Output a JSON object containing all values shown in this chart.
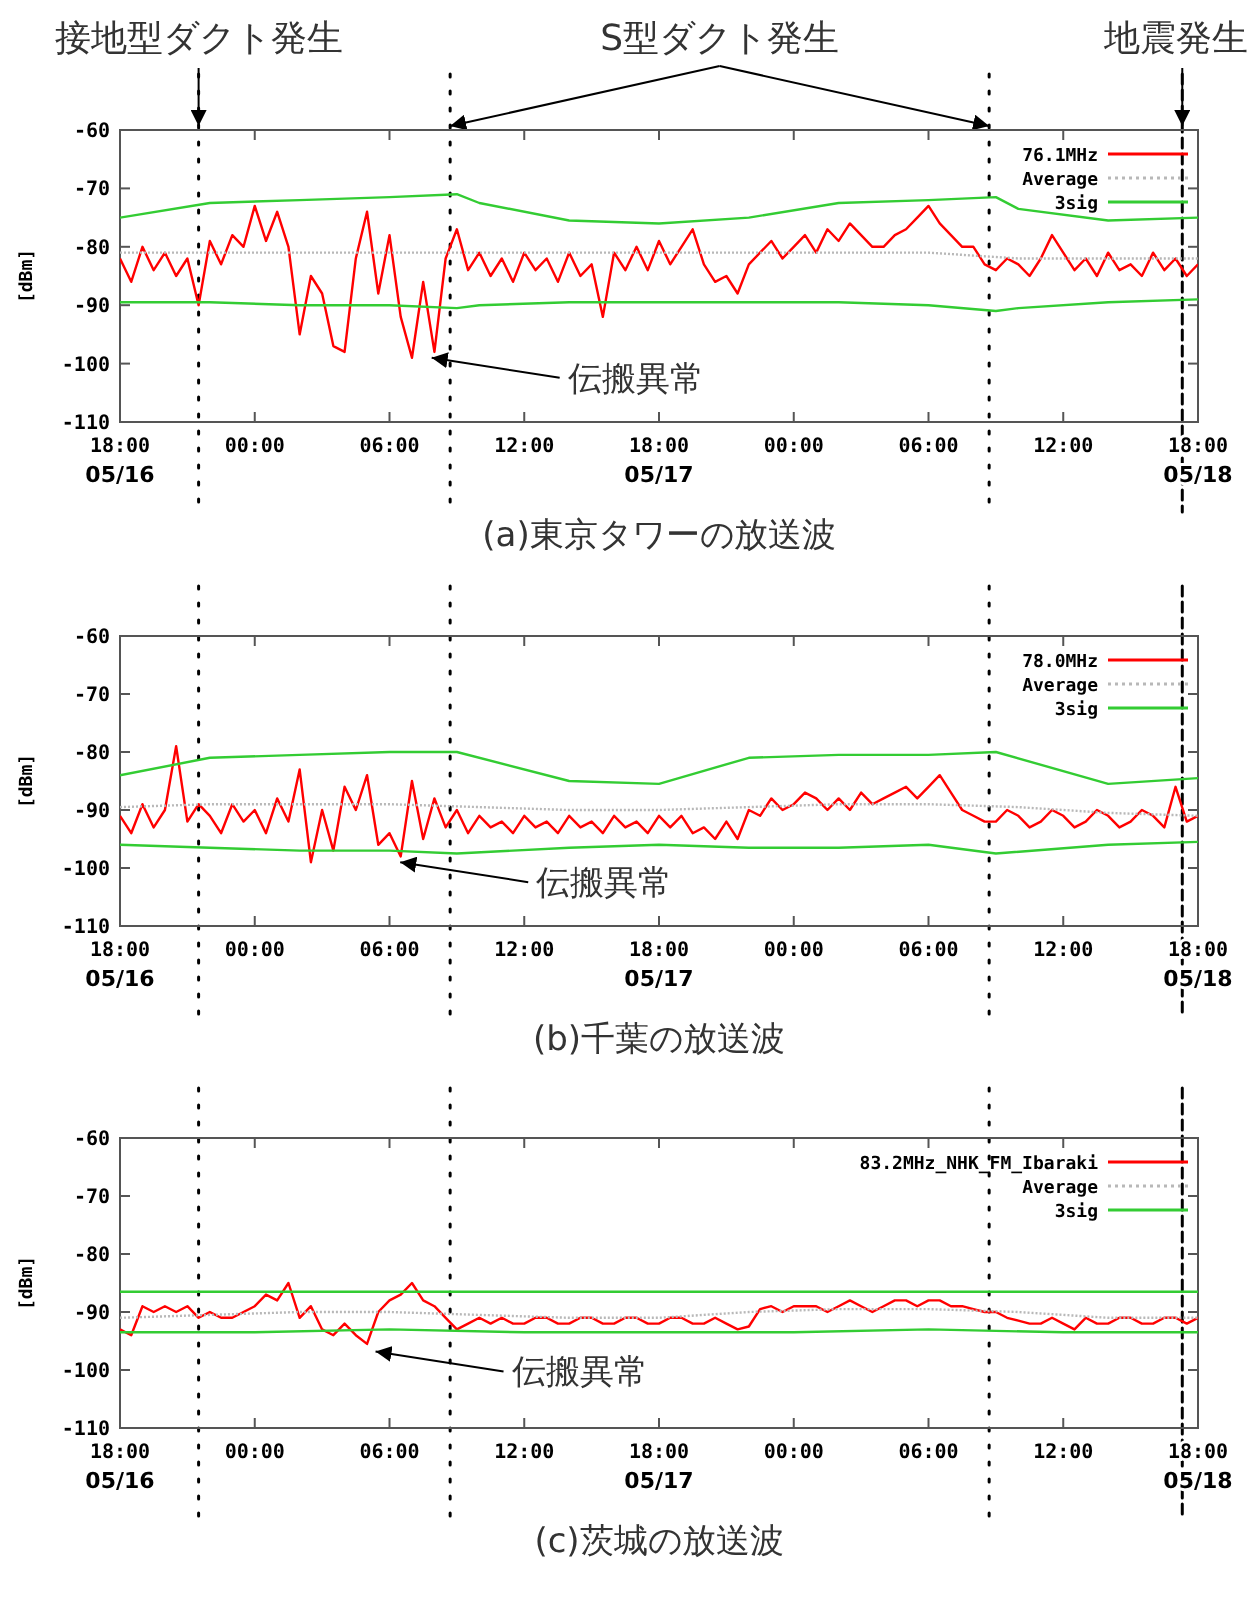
{
  "chart_data": [
    {
      "type": "line",
      "xlabel": "(a)東京タワーの放送波",
      "ylabel": "[dBm]",
      "legend": "top right",
      "xlim": [
        "--05-16T18:00",
        "--05-18T18:00"
      ],
      "ylim": [
        -110,
        -60
      ],
      "xticks": [
        {
          "value": "--05-16T18:00",
          "label": "18:00\n05/16"
        },
        {
          "value": "--05-17T00:00",
          "label": "00:00"
        },
        {
          "value": "--05-17T06:00",
          "label": "06:00"
        },
        {
          "value": "--05-17T12:00",
          "label": "12:00"
        },
        {
          "value": "--05-17T18:00",
          "label": "18:00\n05/17"
        },
        {
          "value": "--05-18T00:00",
          "label": "00:00"
        },
        {
          "value": "--05-18T06:00",
          "label": "06:00"
        },
        {
          "value": "--05-18T12:00",
          "label": "12:00"
        },
        {
          "value": "--05-18T18:00",
          "label": "18:00\n05/18"
        }
      ],
      "yticks": [
        -110,
        -100,
        -90,
        -80,
        -70,
        -60
      ],
      "x": [
        "--05-16T18:00",
        "--05-16T18:30",
        "--05-16T19:00",
        "--05-16T19:30",
        "--05-16T20:00",
        "--05-16T20:30",
        "--05-16T21:00",
        "--05-16T21:30",
        "--05-16T22:00",
        "--05-16T22:30",
        "--05-16T23:00",
        "--05-16T23:30",
        "--05-17T00:00",
        "--05-17T00:30",
        "--05-17T01:00",
        "--05-17T01:30",
        "--05-17T02:00",
        "--05-17T02:30",
        "--05-17T03:00",
        "--05-17T03:30",
        "--05-17T04:00",
        "--05-17T04:30",
        "--05-17T05:00",
        "--05-17T05:30",
        "--05-17T06:00",
        "--05-17T06:30",
        "--05-17T07:00",
        "--05-17T07:30",
        "--05-17T08:00",
        "--05-17T08:30",
        "--05-17T09:00",
        "--05-17T09:30",
        "--05-17T10:00",
        "--05-17T10:30",
        "--05-17T11:00",
        "--05-17T11:30",
        "--05-17T12:00",
        "--05-17T12:30",
        "--05-17T13:00",
        "--05-17T13:30",
        "--05-17T14:00",
        "--05-17T14:30",
        "--05-17T15:00",
        "--05-17T15:30",
        "--05-17T16:00",
        "--05-17T16:30",
        "--05-17T17:00",
        "--05-17T17:30",
        "--05-17T18:00",
        "--05-17T18:30",
        "--05-17T19:00",
        "--05-17T19:30",
        "--05-17T20:00",
        "--05-17T20:30",
        "--05-17T21:00",
        "--05-17T21:30",
        "--05-17T22:00",
        "--05-17T22:30",
        "--05-17T23:00",
        "--05-17T23:30",
        "--05-18T00:00",
        "--05-18T00:30",
        "--05-18T01:00",
        "--05-18T01:30",
        "--05-18T02:00",
        "--05-18T02:30",
        "--05-18T03:00",
        "--05-18T03:30",
        "--05-18T04:00",
        "--05-18T04:30",
        "--05-18T05:00",
        "--05-18T05:30",
        "--05-18T06:00",
        "--05-18T06:30",
        "--05-18T07:00",
        "--05-18T07:30",
        "--05-18T08:00",
        "--05-18T08:30",
        "--05-18T09:00",
        "--05-18T09:30",
        "--05-18T10:00",
        "--05-18T10:30",
        "--05-18T11:00",
        "--05-18T11:30",
        "--05-18T12:00",
        "--05-18T12:30",
        "--05-18T13:00",
        "--05-18T13:30",
        "--05-18T14:00",
        "--05-18T14:30",
        "--05-18T15:00",
        "--05-18T15:30",
        "--05-18T16:00",
        "--05-18T16:30",
        "--05-18T17:00",
        "--05-18T17:30",
        "--05-18T18:00"
      ],
      "series": [
        {
          "name": "76.1MHz",
          "color": "#ff0000",
          "values": [
            -82,
            -86,
            -80,
            -84,
            -81,
            -85,
            -82,
            -90,
            -79,
            -83,
            -78,
            -80,
            -73,
            -79,
            -74,
            -80,
            -95,
            -85,
            -88,
            -97,
            -98,
            -82,
            -74,
            -88,
            -78,
            -92,
            -99,
            -86,
            -98,
            -82,
            -77,
            -84,
            -81,
            -85,
            -82,
            -86,
            -81,
            -84,
            -82,
            -86,
            -81,
            -85,
            -83,
            -92,
            -81,
            -84,
            -80,
            -84,
            -79,
            -83,
            -80,
            -77,
            -83,
            -86,
            -85,
            -88,
            -83,
            -81,
            -79,
            -82,
            -80,
            -78,
            -81,
            -77,
            -79,
            -76,
            -78,
            -80,
            -80,
            -78,
            -77,
            -75,
            -73,
            -76,
            -78,
            -80,
            -80,
            -83,
            -84,
            -82,
            -83,
            -85,
            -82,
            -78,
            -81,
            -84,
            -82,
            -85,
            -81,
            -84,
            -83,
            -85,
            -81,
            -84,
            -82,
            -85,
            -83
          ]
        },
        {
          "name": "Average",
          "color": "#b8b8b8",
          "line_style": "dotted",
          "x": [
            "--05-16T18:00",
            "--05-16T22:00",
            "--05-17T02:00",
            "--05-17T06:00",
            "--05-17T10:00",
            "--05-17T14:00",
            "--05-17T18:00",
            "--05-17T22:00",
            "--05-18T02:00",
            "--05-18T06:00",
            "--05-18T10:00",
            "--05-18T14:00",
            "--05-18T18:00"
          ],
          "values": [
            -81,
            -81,
            -81,
            -81,
            -81,
            -81,
            -81,
            -81,
            -81,
            -81,
            -82,
            -82,
            -82
          ]
        },
        {
          "name": "3sig",
          "color": "#33cc33",
          "x": [
            "--05-16T18:00",
            "--05-16T22:00",
            "--05-17T02:00",
            "--05-17T06:00",
            "--05-17T09:00",
            "--05-17T10:00",
            "--05-17T14:00",
            "--05-17T18:00",
            "--05-17T22:00",
            "--05-18T02:00",
            "--05-18T06:00",
            "--05-18T09:00",
            "--05-18T10:00",
            "--05-18T14:00",
            "--05-18T18:00"
          ],
          "values": [
            -75,
            -72.5,
            -72,
            -71.5,
            -71,
            -72.5,
            -75.5,
            -76,
            -75,
            -72.5,
            -72,
            -71.5,
            -73.5,
            -75.5,
            -75
          ]
        },
        {
          "color": "#33cc33",
          "x": [
            "--05-16T18:00",
            "--05-16T22:00",
            "--05-17T02:00",
            "--05-17T06:00",
            "--05-17T09:00",
            "--05-17T10:00",
            "--05-17T14:00",
            "--05-17T18:00",
            "--05-17T22:00",
            "--05-18T02:00",
            "--05-18T06:00",
            "--05-18T09:00",
            "--05-18T10:00",
            "--05-18T14:00",
            "--05-18T18:00"
          ],
          "values": [
            -89.5,
            -89.5,
            -90,
            -90,
            -90.5,
            -90,
            -89.5,
            -89.5,
            -89.5,
            -89.5,
            -90,
            -91,
            -90.5,
            -89.5,
            -89
          ]
        }
      ],
      "ref_lines": [
        {
          "axis": "x",
          "value": "--05-16T21:30",
          "label": "接地型ダクト発生",
          "line_style": "dotted",
          "color": "#000000"
        },
        {
          "axis": "x",
          "value": "--05-17T08:42",
          "label": "S型ダクト発生",
          "line_style": "dotted",
          "color": "#000000"
        },
        {
          "axis": "x",
          "value": "--05-18T08:42",
          "label": null,
          "line_style": "dotted",
          "color": "#000000"
        },
        {
          "axis": "x",
          "value": "--05-18T17:18",
          "label": "地震発生",
          "line_style": "dashed",
          "color": "#000000"
        }
      ],
      "annotations": [
        {
          "text": "伝搬異常",
          "x": "--05-17T07:42",
          "y": -99
        }
      ]
    },
    {
      "type": "line",
      "xlabel": "(b)千葉の放送波",
      "ylabel": "[dBm]",
      "legend": "top right",
      "xlim": [
        "--05-16T18:00",
        "--05-18T18:00"
      ],
      "ylim": [
        -110,
        -60
      ],
      "xticks": [
        {
          "value": "--05-16T18:00",
          "label": "18:00\n05/16"
        },
        {
          "value": "--05-17T00:00",
          "label": "00:00"
        },
        {
          "value": "--05-17T06:00",
          "label": "06:00"
        },
        {
          "value": "--05-17T12:00",
          "label": "12:00"
        },
        {
          "value": "--05-17T18:00",
          "label": "18:00\n05/17"
        },
        {
          "value": "--05-18T00:00",
          "label": "00:00"
        },
        {
          "value": "--05-18T06:00",
          "label": "06:00"
        },
        {
          "value": "--05-18T12:00",
          "label": "12:00"
        },
        {
          "value": "--05-18T18:00",
          "label": "18:00\n05/18"
        }
      ],
      "yticks": [
        -110,
        -100,
        -90,
        -80,
        -70,
        -60
      ],
      "x": [
        "--05-16T18:00",
        "--05-16T18:30",
        "--05-16T19:00",
        "--05-16T19:30",
        "--05-16T20:00",
        "--05-16T20:30",
        "--05-16T21:00",
        "--05-16T21:30",
        "--05-16T22:00",
        "--05-16T22:30",
        "--05-16T23:00",
        "--05-16T23:30",
        "--05-17T00:00",
        "--05-17T00:30",
        "--05-17T01:00",
        "--05-17T01:30",
        "--05-17T02:00",
        "--05-17T02:30",
        "--05-17T03:00",
        "--05-17T03:30",
        "--05-17T04:00",
        "--05-17T04:30",
        "--05-17T05:00",
        "--05-17T05:30",
        "--05-17T06:00",
        "--05-17T06:30",
        "--05-17T07:00",
        "--05-17T07:30",
        "--05-17T08:00",
        "--05-17T08:30",
        "--05-17T09:00",
        "--05-17T09:30",
        "--05-17T10:00",
        "--05-17T10:30",
        "--05-17T11:00",
        "--05-17T11:30",
        "--05-17T12:00",
        "--05-17T12:30",
        "--05-17T13:00",
        "--05-17T13:30",
        "--05-17T14:00",
        "--05-17T14:30",
        "--05-17T15:00",
        "--05-17T15:30",
        "--05-17T16:00",
        "--05-17T16:30",
        "--05-17T17:00",
        "--05-17T17:30",
        "--05-17T18:00",
        "--05-17T18:30",
        "--05-17T19:00",
        "--05-17T19:30",
        "--05-17T20:00",
        "--05-17T20:30",
        "--05-17T21:00",
        "--05-17T21:30",
        "--05-17T22:00",
        "--05-17T22:30",
        "--05-17T23:00",
        "--05-17T23:30",
        "--05-18T00:00",
        "--05-18T00:30",
        "--05-18T01:00",
        "--05-18T01:30",
        "--05-18T02:00",
        "--05-18T02:30",
        "--05-18T03:00",
        "--05-18T03:30",
        "--05-18T04:00",
        "--05-18T04:30",
        "--05-18T05:00",
        "--05-18T05:30",
        "--05-18T06:00",
        "--05-18T06:30",
        "--05-18T07:00",
        "--05-18T07:30",
        "--05-18T08:00",
        "--05-18T08:30",
        "--05-18T09:00",
        "--05-18T09:30",
        "--05-18T10:00",
        "--05-18T10:30",
        "--05-18T11:00",
        "--05-18T11:30",
        "--05-18T12:00",
        "--05-18T12:30",
        "--05-18T13:00",
        "--05-18T13:30",
        "--05-18T14:00",
        "--05-18T14:30",
        "--05-18T15:00",
        "--05-18T15:30",
        "--05-18T16:00",
        "--05-18T16:30",
        "--05-18T17:00",
        "--05-18T17:30",
        "--05-18T18:00"
      ],
      "series": [
        {
          "name": "78.0MHz",
          "color": "#ff0000",
          "values": [
            -91,
            -94,
            -89,
            -93,
            -90,
            -79,
            -92,
            -89,
            -91,
            -94,
            -89,
            -92,
            -90,
            -94,
            -88,
            -92,
            -83,
            -99,
            -90,
            -97,
            -86,
            -90,
            -84,
            -96,
            -94,
            -98,
            -85,
            -95,
            -88,
            -93,
            -90,
            -94,
            -91,
            -93,
            -92,
            -94,
            -91,
            -93,
            -92,
            -94,
            -91,
            -93,
            -92,
            -94,
            -91,
            -93,
            -92,
            -94,
            -91,
            -93,
            -91,
            -94,
            -93,
            -95,
            -92,
            -95,
            -90,
            -91,
            -88,
            -90,
            -89,
            -87,
            -88,
            -90,
            -88,
            -90,
            -87,
            -89,
            -88,
            -87,
            -86,
            -88,
            -86,
            -84,
            -87,
            -90,
            -91,
            -92,
            -92,
            -90,
            -91,
            -93,
            -92,
            -90,
            -91,
            -93,
            -92,
            -90,
            -91,
            -93,
            -92,
            -90,
            -91,
            -93,
            -86,
            -92,
            -91
          ]
        },
        {
          "name": "Average",
          "color": "#b8b8b8",
          "line_style": "dotted",
          "x": [
            "--05-16T18:00",
            "--05-16T22:00",
            "--05-17T02:00",
            "--05-17T06:00",
            "--05-17T10:00",
            "--05-17T14:00",
            "--05-17T18:00",
            "--05-17T22:00",
            "--05-18T02:00",
            "--05-18T06:00",
            "--05-18T10:00",
            "--05-18T14:00",
            "--05-18T18:00"
          ],
          "values": [
            -89.5,
            -89,
            -89,
            -89,
            -89.5,
            -90,
            -90,
            -89.5,
            -89,
            -89,
            -89.5,
            -90.5,
            -91
          ]
        },
        {
          "name": "3sig",
          "color": "#33cc33",
          "x": [
            "--05-16T18:00",
            "--05-16T22:00",
            "--05-17T02:00",
            "--05-17T06:00",
            "--05-17T09:00",
            "--05-17T14:00",
            "--05-17T18:00",
            "--05-17T22:00",
            "--05-18T02:00",
            "--05-18T06:00",
            "--05-18T09:00",
            "--05-18T14:00",
            "--05-18T18:00"
          ],
          "values": [
            -84,
            -81,
            -80.5,
            -80,
            -80,
            -85,
            -85.5,
            -81,
            -80.5,
            -80.5,
            -80,
            -85.5,
            -84.5
          ]
        },
        {
          "color": "#33cc33",
          "x": [
            "--05-16T18:00",
            "--05-16T22:00",
            "--05-17T02:00",
            "--05-17T06:00",
            "--05-17T09:00",
            "--05-17T14:00",
            "--05-17T18:00",
            "--05-17T22:00",
            "--05-18T02:00",
            "--05-18T06:00",
            "--05-18T09:00",
            "--05-18T14:00",
            "--05-18T18:00"
          ],
          "values": [
            -96,
            -96.5,
            -97,
            -97,
            -97.5,
            -96.5,
            -96,
            -96.5,
            -96.5,
            -96,
            -97.5,
            -96,
            -95.5
          ]
        }
      ],
      "ref_lines": [
        {
          "axis": "x",
          "value": "--05-16T21:30",
          "line_style": "dotted",
          "color": "#000000"
        },
        {
          "axis": "x",
          "value": "--05-17T08:42",
          "line_style": "dotted",
          "color": "#000000"
        },
        {
          "axis": "x",
          "value": "--05-18T08:42",
          "line_style": "dotted",
          "color": "#000000"
        },
        {
          "axis": "x",
          "value": "--05-18T17:18",
          "line_style": "dashed",
          "color": "#000000"
        }
      ],
      "annotations": [
        {
          "text": "伝搬異常",
          "x": "--05-17T06:18",
          "y": -99
        }
      ]
    },
    {
      "type": "line",
      "xlabel": "(c)茨城の放送波",
      "ylabel": "[dBm]",
      "legend": "top right",
      "xlim": [
        "--05-16T18:00",
        "--05-18T18:00"
      ],
      "ylim": [
        -110,
        -60
      ],
      "xticks": [
        {
          "value": "--05-16T18:00",
          "label": "18:00\n05/16"
        },
        {
          "value": "--05-17T00:00",
          "label": "00:00"
        },
        {
          "value": "--05-17T06:00",
          "label": "06:00"
        },
        {
          "value": "--05-17T12:00",
          "label": "12:00"
        },
        {
          "value": "--05-17T18:00",
          "label": "18:00\n05/17"
        },
        {
          "value": "--05-18T00:00",
          "label": "00:00"
        },
        {
          "value": "--05-18T06:00",
          "label": "06:00"
        },
        {
          "value": "--05-18T12:00",
          "label": "12:00"
        },
        {
          "value": "--05-18T18:00",
          "label": "18:00\n05/18"
        }
      ],
      "yticks": [
        -110,
        -100,
        -90,
        -80,
        -70,
        -60
      ],
      "x": [
        "--05-16T18:00",
        "--05-16T18:30",
        "--05-16T19:00",
        "--05-16T19:30",
        "--05-16T20:00",
        "--05-16T20:30",
        "--05-16T21:00",
        "--05-16T21:30",
        "--05-16T22:00",
        "--05-16T22:30",
        "--05-16T23:00",
        "--05-16T23:30",
        "--05-17T00:00",
        "--05-17T00:30",
        "--05-17T01:00",
        "--05-17T01:30",
        "--05-17T02:00",
        "--05-17T02:30",
        "--05-17T03:00",
        "--05-17T03:30",
        "--05-17T04:00",
        "--05-17T04:30",
        "--05-17T05:00",
        "--05-17T05:30",
        "--05-17T06:00",
        "--05-17T06:30",
        "--05-17T07:00",
        "--05-17T07:30",
        "--05-17T08:00",
        "--05-17T08:30",
        "--05-17T09:00",
        "--05-17T09:30",
        "--05-17T10:00",
        "--05-17T10:30",
        "--05-17T11:00",
        "--05-17T11:30",
        "--05-17T12:00",
        "--05-17T12:30",
        "--05-17T13:00",
        "--05-17T13:30",
        "--05-17T14:00",
        "--05-17T14:30",
        "--05-17T15:00",
        "--05-17T15:30",
        "--05-17T16:00",
        "--05-17T16:30",
        "--05-17T17:00",
        "--05-17T17:30",
        "--05-17T18:00",
        "--05-17T18:30",
        "--05-17T19:00",
        "--05-17T19:30",
        "--05-17T20:00",
        "--05-17T20:30",
        "--05-17T21:00",
        "--05-17T21:30",
        "--05-17T22:00",
        "--05-17T22:30",
        "--05-17T23:00",
        "--05-17T23:30",
        "--05-18T00:00",
        "--05-18T00:30",
        "--05-18T01:00",
        "--05-18T01:30",
        "--05-18T02:00",
        "--05-18T02:30",
        "--05-18T03:00",
        "--05-18T03:30",
        "--05-18T04:00",
        "--05-18T04:30",
        "--05-18T05:00",
        "--05-18T05:30",
        "--05-18T06:00",
        "--05-18T06:30",
        "--05-18T07:00",
        "--05-18T07:30",
        "--05-18T08:00",
        "--05-18T08:30",
        "--05-18T09:00",
        "--05-18T09:30",
        "--05-18T10:00",
        "--05-18T10:30",
        "--05-18T11:00",
        "--05-18T11:30",
        "--05-18T12:00",
        "--05-18T12:30",
        "--05-18T13:00",
        "--05-18T13:30",
        "--05-18T14:00",
        "--05-18T14:30",
        "--05-18T15:00",
        "--05-18T15:30",
        "--05-18T16:00",
        "--05-18T16:30",
        "--05-18T17:00",
        "--05-18T17:30",
        "--05-18T18:00"
      ],
      "series": [
        {
          "name": "83.2MHz_NHK_FM_Ibaraki",
          "color": "#ff0000",
          "values": [
            -93,
            -94,
            -89,
            -90,
            -89,
            -90,
            -89,
            -91,
            -90,
            -91,
            -91,
            -90,
            -89,
            -87,
            -88,
            -85,
            -91,
            -89,
            -93,
            -94,
            -92,
            -94,
            -95.5,
            -90,
            -88,
            -87,
            -85,
            -88,
            -89,
            -91,
            -93,
            -92,
            -91,
            -92,
            -91,
            -92,
            -92,
            -91,
            -91,
            -92,
            -92,
            -91,
            -91,
            -92,
            -92,
            -91,
            -91,
            -92,
            -92,
            -91,
            -91,
            -92,
            -92,
            -91,
            -92,
            -93,
            -92.5,
            -89.5,
            -89,
            -90,
            -89,
            -89,
            -89,
            -90,
            -89,
            -88,
            -89,
            -90,
            -89,
            -88,
            -88,
            -89,
            -88,
            -88,
            -89,
            -89,
            -89.5,
            -90,
            -90,
            -91,
            -91.5,
            -92,
            -92,
            -91,
            -92,
            -93,
            -91,
            -92,
            -92,
            -91,
            -91,
            -92,
            -92,
            -91,
            -91,
            -92,
            -91
          ]
        },
        {
          "name": "Average",
          "color": "#b8b8b8",
          "line_style": "dotted",
          "x": [
            "--05-16T18:00",
            "--05-16T22:00",
            "--05-17T02:00",
            "--05-17T06:00",
            "--05-17T10:00",
            "--05-17T14:00",
            "--05-17T18:00",
            "--05-17T22:00",
            "--05-18T02:00",
            "--05-18T06:00",
            "--05-18T10:00",
            "--05-18T14:00",
            "--05-18T18:00"
          ],
          "values": [
            -91,
            -90.5,
            -90,
            -90,
            -90.5,
            -91,
            -91,
            -90,
            -89.5,
            -89.5,
            -90,
            -91,
            -91
          ]
        },
        {
          "name": "3sig",
          "color": "#33cc33",
          "x": [
            "--05-16T18:00",
            "--05-17T00:00",
            "--05-17T06:00",
            "--05-17T12:00",
            "--05-17T18:00",
            "--05-18T00:00",
            "--05-18T06:00",
            "--05-18T12:00",
            "--05-18T18:00"
          ],
          "values": [
            -86.5,
            -86.5,
            -86.5,
            -86.5,
            -86.5,
            -86.5,
            -86.5,
            -86.5,
            -86.5
          ]
        },
        {
          "color": "#33cc33",
          "x": [
            "--05-16T18:00",
            "--05-17T00:00",
            "--05-17T06:00",
            "--05-17T12:00",
            "--05-17T18:00",
            "--05-18T00:00",
            "--05-18T06:00",
            "--05-18T12:00",
            "--05-18T18:00"
          ],
          "values": [
            -93.5,
            -93.5,
            -93,
            -93.5,
            -93.5,
            -93.5,
            -93,
            -93.5,
            -93.5
          ]
        }
      ],
      "ref_lines": [
        {
          "axis": "x",
          "value": "--05-16T21:30",
          "line_style": "dotted",
          "color": "#000000"
        },
        {
          "axis": "x",
          "value": "--05-17T08:42",
          "line_style": "dotted",
          "color": "#000000"
        },
        {
          "axis": "x",
          "value": "--05-18T08:42",
          "line_style": "dotted",
          "color": "#000000"
        },
        {
          "axis": "x",
          "value": "--05-18T17:18",
          "line_style": "dashed",
          "color": "#000000"
        }
      ],
      "annotations": [
        {
          "text": "伝搬異常",
          "x": "--05-17T05:12",
          "y": -96.8
        }
      ]
    }
  ]
}
